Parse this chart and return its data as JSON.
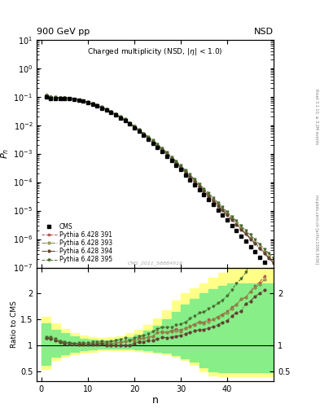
{
  "title_main": "900 GeV pp",
  "title_right": "NSD",
  "plot_title": "Charged multiplicity (NSD, |\\u03b7| < 1.0)",
  "xlabel": "n",
  "ylabel_top": "$P_n$",
  "ylabel_bottom": "Ratio to CMS",
  "watermark": "CMS_2011_S8884919",
  "right_label": "mcplots.cern.ch [arXiv:1306.3436]",
  "right_label2": "Rivet 3.1.10, ≥ 3.2M events",
  "xlim": [
    0,
    50
  ],
  "color_cms": "#000000",
  "color_391": "#b05050",
  "color_393": "#888840",
  "color_394": "#604030",
  "color_395": "#4a6b30",
  "color_yellow": "#ffff88",
  "color_green": "#88ee88",
  "bg_color": "#ffffff",
  "cms_n": [
    1,
    2,
    3,
    4,
    5,
    6,
    7,
    8,
    9,
    10,
    11,
    12,
    13,
    14,
    15,
    16,
    17,
    18,
    19,
    20,
    21,
    22,
    23,
    24,
    25,
    26,
    27,
    28,
    29,
    30,
    31,
    32,
    33,
    34,
    35,
    36,
    37,
    38,
    39,
    40,
    41,
    42,
    43,
    44,
    45,
    46,
    47,
    48
  ],
  "cms_p": [
    0.097,
    0.086,
    0.085,
    0.086,
    0.086,
    0.083,
    0.079,
    0.074,
    0.068,
    0.061,
    0.054,
    0.047,
    0.04,
    0.034,
    0.028,
    0.023,
    0.018,
    0.014,
    0.011,
    0.0082,
    0.006,
    0.0044,
    0.0032,
    0.0023,
    0.0016,
    0.00115,
    0.00082,
    0.00057,
    0.00039,
    0.00027,
    0.00018,
    0.00012,
    8e-05,
    5.3e-05,
    3.6e-05,
    2.4e-05,
    1.6e-05,
    1.06e-05,
    7e-06,
    4.6e-06,
    3e-06,
    1.96e-06,
    1.27e-06,
    8.3e-07,
    5.4e-07,
    3.5e-07,
    2.3e-07,
    1.5e-07
  ],
  "py391_n": [
    1,
    2,
    3,
    4,
    5,
    6,
    7,
    8,
    9,
    10,
    11,
    12,
    13,
    14,
    15,
    16,
    17,
    18,
    19,
    20,
    21,
    22,
    23,
    24,
    25,
    26,
    27,
    28,
    29,
    30,
    31,
    32,
    33,
    34,
    35,
    36,
    37,
    38,
    39,
    40,
    41,
    42,
    43,
    44,
    45,
    46,
    47,
    48,
    49,
    50
  ],
  "py391_p": [
    0.112,
    0.099,
    0.095,
    0.093,
    0.091,
    0.087,
    0.082,
    0.076,
    0.07,
    0.063,
    0.056,
    0.049,
    0.042,
    0.035,
    0.029,
    0.024,
    0.019,
    0.015,
    0.012,
    0.009,
    0.0068,
    0.005,
    0.0037,
    0.0027,
    0.002,
    0.00145,
    0.00103,
    0.00073,
    0.00051,
    0.00035,
    0.00024,
    0.000165,
    0.000113,
    7.7e-05,
    5.2e-05,
    3.6e-05,
    2.4e-05,
    1.65e-05,
    1.12e-05,
    7.6e-06,
    5.2e-06,
    3.5e-06,
    2.4e-06,
    1.6e-06,
    1.1e-06,
    7.5e-07,
    5.1e-07,
    3.5e-07,
    2.4e-07,
    1.6e-07
  ],
  "py393_n": [
    1,
    2,
    3,
    4,
    5,
    6,
    7,
    8,
    9,
    10,
    11,
    12,
    13,
    14,
    15,
    16,
    17,
    18,
    19,
    20,
    21,
    22,
    23,
    24,
    25,
    26,
    27,
    28,
    29,
    30,
    31,
    32,
    33,
    34,
    35,
    36,
    37,
    38,
    39,
    40,
    41,
    42,
    43,
    44,
    45,
    46,
    47,
    48,
    49,
    50
  ],
  "py393_p": [
    0.111,
    0.098,
    0.094,
    0.092,
    0.09,
    0.086,
    0.081,
    0.076,
    0.07,
    0.063,
    0.056,
    0.049,
    0.042,
    0.035,
    0.029,
    0.024,
    0.019,
    0.015,
    0.012,
    0.0089,
    0.0067,
    0.005,
    0.0037,
    0.0027,
    0.002,
    0.00144,
    0.00102,
    0.00072,
    0.0005,
    0.00034,
    0.00024,
    0.000163,
    0.000112,
    7.6e-05,
    5.1e-05,
    3.5e-05,
    2.4e-05,
    1.63e-05,
    1.11e-05,
    7.5e-06,
    5.1e-06,
    3.5e-06,
    2.4e-06,
    1.6e-06,
    1.1e-06,
    7.4e-07,
    5e-07,
    3.4e-07,
    2.3e-07,
    1.6e-07
  ],
  "py394_n": [
    1,
    2,
    3,
    4,
    5,
    6,
    7,
    8,
    9,
    10,
    11,
    12,
    13,
    14,
    15,
    16,
    17,
    18,
    19,
    20,
    21,
    22,
    23,
    24,
    25,
    26,
    27,
    28,
    29,
    30,
    31,
    32,
    33,
    34,
    35,
    36,
    37,
    38,
    39,
    40,
    41,
    42,
    43,
    44,
    45,
    46,
    47,
    48,
    49,
    50
  ],
  "py394_p": [
    0.11,
    0.097,
    0.093,
    0.091,
    0.089,
    0.085,
    0.081,
    0.075,
    0.069,
    0.062,
    0.055,
    0.048,
    0.041,
    0.034,
    0.028,
    0.023,
    0.018,
    0.014,
    0.011,
    0.0085,
    0.0064,
    0.0047,
    0.0035,
    0.0025,
    0.0018,
    0.00133,
    0.00094,
    0.00066,
    0.00046,
    0.00032,
    0.00022,
    0.00015,
    0.000102,
    6.9e-05,
    4.7e-05,
    3.2e-05,
    2.17e-05,
    1.48e-05,
    1.01e-05,
    6.8e-06,
    4.7e-06,
    3.2e-06,
    2.1e-06,
    1.5e-06,
    1e-06,
    6.8e-07,
    4.6e-07,
    3.1e-07,
    2.1e-07,
    1.4e-07
  ],
  "py395_n": [
    1,
    2,
    3,
    4,
    5,
    6,
    7,
    8,
    9,
    10,
    11,
    12,
    13,
    14,
    15,
    16,
    17,
    18,
    19,
    20,
    21,
    22,
    23,
    24,
    25,
    26,
    27,
    28,
    29,
    30,
    31,
    32,
    33,
    34,
    35,
    36,
    37,
    38,
    39,
    40,
    41,
    42,
    43,
    44,
    45,
    46,
    47,
    48,
    49,
    50
  ],
  "py395_p": [
    0.112,
    0.099,
    0.095,
    0.093,
    0.091,
    0.087,
    0.082,
    0.077,
    0.071,
    0.064,
    0.057,
    0.05,
    0.043,
    0.036,
    0.03,
    0.025,
    0.02,
    0.016,
    0.012,
    0.0093,
    0.007,
    0.0052,
    0.0039,
    0.0029,
    0.0021,
    0.00155,
    0.0011,
    0.00077,
    0.00054,
    0.00038,
    0.00026,
    0.000182,
    0.000125,
    8.6e-05,
    5.9e-05,
    4.1e-05,
    2.8e-05,
    1.92e-05,
    1.31e-05,
    9e-06,
    6.2e-06,
    4.3e-06,
    2.9e-06,
    2e-06,
    1.4e-06,
    9.5e-07,
    6.5e-07,
    4.5e-07,
    3.1e-07,
    2.1e-07
  ],
  "band_x": [
    0,
    2,
    4,
    6,
    8,
    10,
    12,
    14,
    16,
    18,
    20,
    22,
    24,
    26,
    28,
    30,
    32,
    34,
    36,
    38,
    40,
    42,
    44,
    46,
    48,
    50
  ],
  "yellow_lo": [
    0.55,
    0.72,
    0.78,
    0.82,
    0.86,
    0.88,
    0.9,
    0.91,
    0.91,
    0.9,
    0.89,
    0.87,
    0.85,
    0.82,
    0.78,
    0.72,
    0.62,
    0.5,
    0.42,
    0.4,
    0.4,
    0.4,
    0.4,
    0.4,
    0.4,
    0.4
  ],
  "yellow_hi": [
    1.55,
    1.42,
    1.32,
    1.24,
    1.19,
    1.16,
    1.14,
    1.15,
    1.18,
    1.23,
    1.3,
    1.4,
    1.52,
    1.68,
    1.86,
    2.0,
    2.1,
    2.2,
    2.3,
    2.4,
    2.5,
    2.5,
    2.5,
    2.5,
    2.5,
    2.5
  ],
  "green_lo": [
    0.62,
    0.78,
    0.83,
    0.87,
    0.9,
    0.92,
    0.93,
    0.94,
    0.94,
    0.93,
    0.92,
    0.9,
    0.88,
    0.85,
    0.81,
    0.75,
    0.68,
    0.58,
    0.5,
    0.48,
    0.48,
    0.48,
    0.48,
    0.48,
    0.48,
    0.48
  ],
  "green_hi": [
    1.42,
    1.3,
    1.23,
    1.17,
    1.13,
    1.11,
    1.1,
    1.1,
    1.12,
    1.16,
    1.21,
    1.28,
    1.37,
    1.5,
    1.64,
    1.78,
    1.9,
    2.0,
    2.08,
    2.15,
    2.2,
    2.2,
    2.2,
    2.2,
    2.2,
    2.2
  ]
}
